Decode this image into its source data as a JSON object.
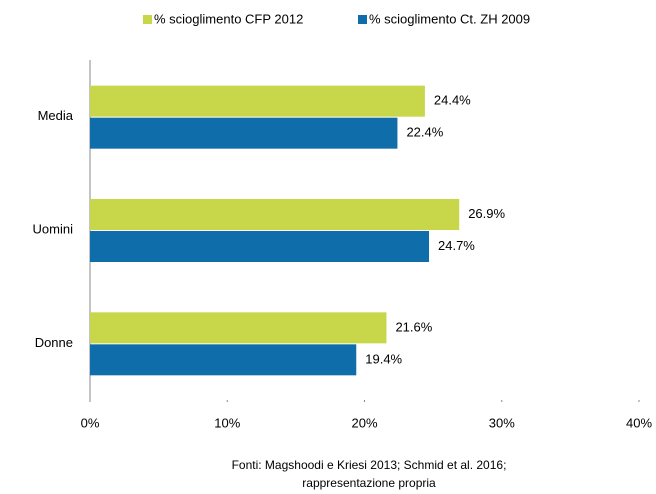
{
  "chart_data": {
    "type": "bar",
    "orientation": "horizontal",
    "categories": [
      "Media",
      "Uomini",
      "Donne"
    ],
    "series": [
      {
        "name": "% scioglimento CFP 2012",
        "color": "#c8d64a",
        "values": [
          24.4,
          26.9,
          21.6
        ],
        "value_labels": [
          "24.4%",
          "26.9%",
          "21.6%"
        ]
      },
      {
        "name": "% scioglimento Ct. ZH 2009",
        "color": "#0f6ea9",
        "values": [
          22.4,
          24.7,
          19.4
        ],
        "value_labels": [
          "22.4%",
          "24.7%",
          "19.4%"
        ]
      }
    ],
    "xlim": [
      0,
      40
    ],
    "xticks": [
      {
        "value": 0,
        "label": "0%"
      },
      {
        "value": 10,
        "label": "10%"
      },
      {
        "value": 20,
        "label": "20%"
      },
      {
        "value": 30,
        "label": "30%"
      },
      {
        "value": 40,
        "label": "40%"
      }
    ],
    "grid": false,
    "legend": "top",
    "footnote": [
      "Fonti: Magshoodi e Kriesi 2013; Schmid et al. 2016;",
      "rappresentazione propria"
    ]
  }
}
